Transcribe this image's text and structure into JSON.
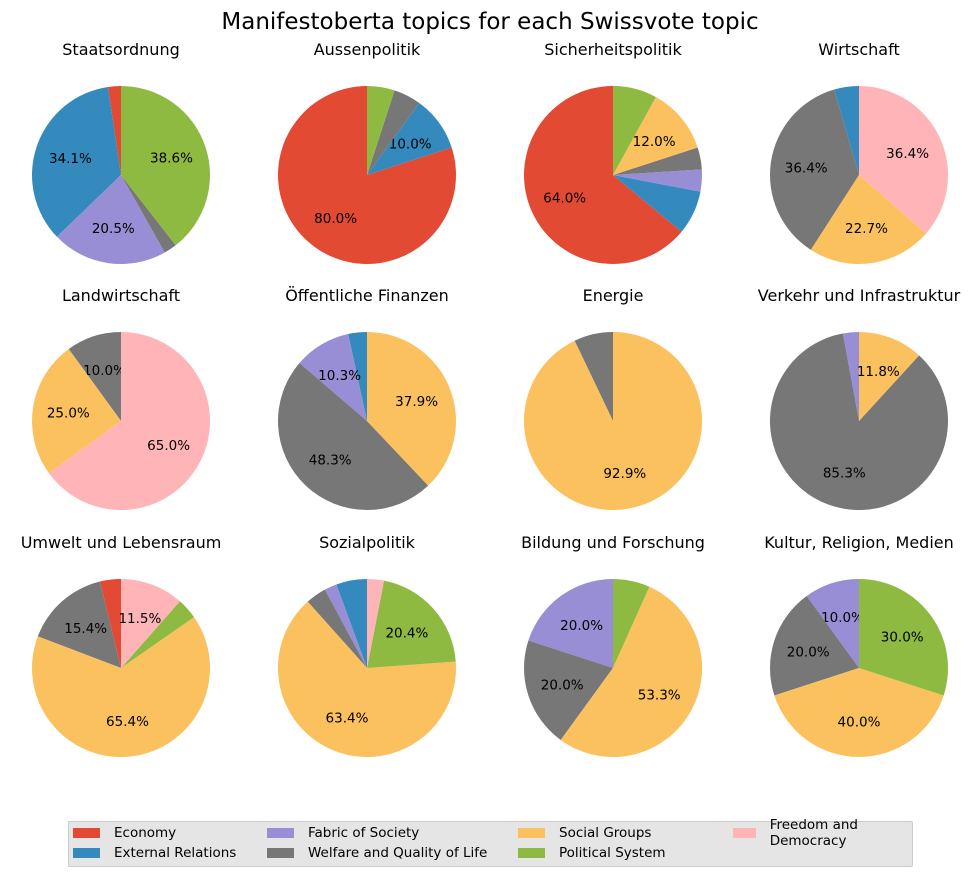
{
  "chart_data": {
    "type": "pie",
    "title": "Manifestoberta topics for each Swissvote topic",
    "colors": {
      "Economy": "#E24A33",
      "External Relations": "#348ABD",
      "Fabric of Society": "#988ED5",
      "Welfare and Quality of Life": "#777777",
      "Social Groups": "#FBC15E",
      "Political System": "#8EBA42",
      "Freedom and Democracy": "#FFB5B8"
    },
    "legend": {
      "placement": "bottom",
      "entries": [
        "Economy",
        "External Relations",
        "Fabric of Society",
        "Welfare and Quality of Life",
        "Social Groups",
        "Political System",
        "Freedom and Democracy"
      ]
    },
    "charts": [
      {
        "title": "Staatsordnung",
        "slices": [
          {
            "label": "Economy",
            "value": 2.3
          },
          {
            "label": "External Relations",
            "value": 34.1
          },
          {
            "label": "Fabric of Society",
            "value": 20.5
          },
          {
            "label": "Welfare and Quality of Life",
            "value": 2.3
          },
          {
            "label": "Political System",
            "value": 38.6
          }
        ],
        "pct_labels": {
          "External Relations": "34.1%",
          "Fabric of Society": "20.5%",
          "Political System": "38.6%"
        }
      },
      {
        "title": "Aussenpolitik",
        "slices": [
          {
            "label": "Economy",
            "value": 80.0
          },
          {
            "label": "External Relations",
            "value": 10.0
          },
          {
            "label": "Welfare and Quality of Life",
            "value": 5.0
          },
          {
            "label": "Political System",
            "value": 5.0
          }
        ],
        "pct_labels": {
          "Economy": "80.0%",
          "External Relations": "10.0%"
        }
      },
      {
        "title": "Sicherheitspolitik",
        "slices": [
          {
            "label": "Economy",
            "value": 64.0
          },
          {
            "label": "External Relations",
            "value": 8.0
          },
          {
            "label": "Fabric of Society",
            "value": 4.0
          },
          {
            "label": "Welfare and Quality of Life",
            "value": 4.0
          },
          {
            "label": "Social Groups",
            "value": 12.0
          },
          {
            "label": "Political System",
            "value": 8.0
          }
        ],
        "pct_labels": {
          "Economy": "64.0%",
          "Social Groups": "12.0%"
        }
      },
      {
        "title": "Wirtschaft",
        "slices": [
          {
            "label": "External Relations",
            "value": 4.5
          },
          {
            "label": "Welfare and Quality of Life",
            "value": 36.4
          },
          {
            "label": "Social Groups",
            "value": 22.7
          },
          {
            "label": "Freedom and Democracy",
            "value": 36.4
          }
        ],
        "pct_labels": {
          "Welfare and Quality of Life": "36.4%",
          "Social Groups": "22.7%",
          "Freedom and Democracy": "36.4%"
        }
      },
      {
        "title": "Landwirtschaft",
        "slices": [
          {
            "label": "Welfare and Quality of Life",
            "value": 10.0
          },
          {
            "label": "Social Groups",
            "value": 25.0
          },
          {
            "label": "Freedom and Democracy",
            "value": 65.0
          }
        ],
        "pct_labels": {
          "Welfare and Quality of Life": "10.0%",
          "Social Groups": "25.0%",
          "Freedom and Democracy": "65.0%"
        }
      },
      {
        "title": "Öffentliche Finanzen",
        "slices": [
          {
            "label": "External Relations",
            "value": 3.4
          },
          {
            "label": "Fabric of Society",
            "value": 10.3
          },
          {
            "label": "Welfare and Quality of Life",
            "value": 48.3
          },
          {
            "label": "Social Groups",
            "value": 37.9
          }
        ],
        "pct_labels": {
          "Fabric of Society": "10.3%",
          "Welfare and Quality of Life": "48.3%",
          "Social Groups": "37.9%"
        }
      },
      {
        "title": "Energie",
        "slices": [
          {
            "label": "Welfare and Quality of Life",
            "value": 7.1
          },
          {
            "label": "Social Groups",
            "value": 92.9
          }
        ],
        "pct_labels": {
          "Social Groups": "92.9%"
        }
      },
      {
        "title": "Verkehr und Infrastruktur",
        "slices": [
          {
            "label": "Fabric of Society",
            "value": 2.9
          },
          {
            "label": "Welfare and Quality of Life",
            "value": 85.3
          },
          {
            "label": "Social Groups",
            "value": 11.8
          }
        ],
        "pct_labels": {
          "Welfare and Quality of Life": "85.3%",
          "Social Groups": "11.8%"
        }
      },
      {
        "title": "Umwelt und Lebensraum",
        "slices": [
          {
            "label": "Economy",
            "value": 3.8
          },
          {
            "label": "Welfare and Quality of Life",
            "value": 15.4
          },
          {
            "label": "Social Groups",
            "value": 65.4
          },
          {
            "label": "Political System",
            "value": 3.8
          },
          {
            "label": "Freedom and Democracy",
            "value": 11.5
          }
        ],
        "pct_labels": {
          "Welfare and Quality of Life": "15.4%",
          "Social Groups": "65.4%",
          "Freedom and Democracy": "11.5%"
        }
      },
      {
        "title": "Sozialpolitik",
        "slices": [
          {
            "label": "External Relations",
            "value": 5.5
          },
          {
            "label": "Fabric of Society",
            "value": 2.2
          },
          {
            "label": "Welfare and Quality of Life",
            "value": 3.7
          },
          {
            "label": "Social Groups",
            "value": 63.4
          },
          {
            "label": "Political System",
            "value": 20.4
          },
          {
            "label": "Freedom and Democracy",
            "value": 3.0
          }
        ],
        "pct_labels": {
          "Social Groups": "63.4%",
          "Political System": "20.4%"
        }
      },
      {
        "title": "Bildung und Forschung",
        "slices": [
          {
            "label": "Fabric of Society",
            "value": 20.0
          },
          {
            "label": "Welfare and Quality of Life",
            "value": 20.0
          },
          {
            "label": "Social Groups",
            "value": 53.3
          },
          {
            "label": "Political System",
            "value": 6.7
          }
        ],
        "pct_labels": {
          "Fabric of Society": "20.0%",
          "Welfare and Quality of Life": "20.0%",
          "Social Groups": "53.3%"
        }
      },
      {
        "title": "Kultur, Religion, Medien",
        "slices": [
          {
            "label": "Fabric of Society",
            "value": 10.0
          },
          {
            "label": "Welfare and Quality of Life",
            "value": 20.0
          },
          {
            "label": "Social Groups",
            "value": 40.0
          },
          {
            "label": "Political System",
            "value": 30.0
          }
        ],
        "pct_labels": {
          "Fabric of Society": "10.0%",
          "Welfare and Quality of Life": "20.0%",
          "Social Groups": "40.0%",
          "Political System": "30.0%"
        }
      }
    ]
  }
}
